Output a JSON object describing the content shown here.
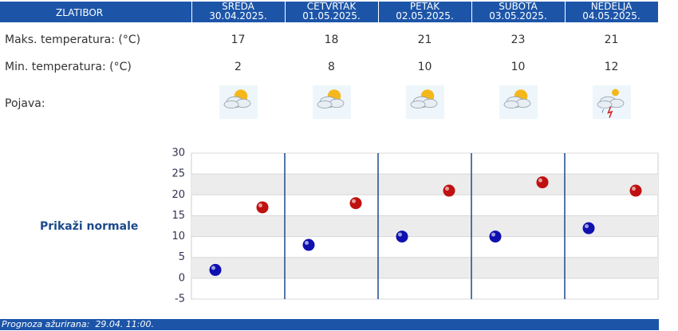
{
  "header": {
    "location": "ZLATIBOR",
    "days": [
      {
        "name": "SREDA",
        "date": "30.04.2025."
      },
      {
        "name": "ČETVRTAK",
        "date": "01.05.2025."
      },
      {
        "name": "PETAK",
        "date": "02.05.2025."
      },
      {
        "name": "SUBOTA",
        "date": "03.05.2025."
      },
      {
        "name": "NEDELJA",
        "date": "04.05.2025."
      }
    ]
  },
  "rows": {
    "max_label": "Maks. temperatura: (°C)",
    "min_label": "Min. temperatura: (°C)",
    "phenomenon_label": "Pojava:"
  },
  "normals_link": "Prikaži normale",
  "chart_data": {
    "type": "scatter",
    "series": [
      {
        "color": "#1010b0",
        "values": [
          2,
          8,
          10,
          10,
          12
        ]
      },
      {
        "color": "#c01010",
        "values": [
          17,
          18,
          21,
          23,
          21
        ]
      }
    ],
    "ylim": [
      -5,
      30
    ],
    "yticks": [
      -5,
      0,
      5,
      10,
      15,
      20,
      25,
      30
    ],
    "grid": true
  },
  "footer": {
    "label": "Prognoza ažurirana:",
    "time": "29.04. 11:00."
  }
}
